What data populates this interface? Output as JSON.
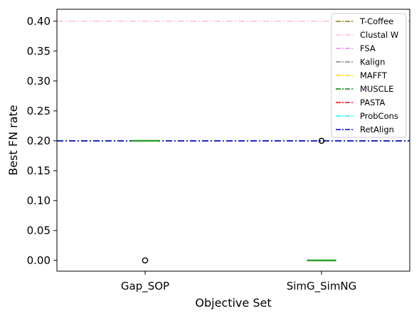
{
  "chart_data": {
    "type": "box",
    "xlabel": "Objective Set",
    "ylabel": "Best FN rate",
    "ylim": [
      -0.018,
      0.42
    ],
    "yticks": [
      0.0,
      0.05,
      0.1,
      0.15,
      0.2,
      0.25,
      0.3,
      0.35,
      0.4
    ],
    "ytick_labels": [
      "0.00",
      "0.05",
      "0.10",
      "0.15",
      "0.20",
      "0.25",
      "0.30",
      "0.35",
      "0.40"
    ],
    "categories": [
      "Gap_SOP",
      "SimG_SimNG"
    ],
    "boxes": [
      {
        "category": "Gap_SOP",
        "median": 0.2,
        "q1": 0.2,
        "q3": 0.2,
        "whisker_low": 0.2,
        "whisker_high": 0.2,
        "outliers": [
          0.0
        ]
      },
      {
        "category": "SimG_SimNG",
        "median": 0.0,
        "q1": 0.0,
        "q3": 0.0,
        "whisker_low": 0.0,
        "whisker_high": 0.0,
        "outliers": [
          0.2
        ]
      }
    ],
    "reference_lines": [
      {
        "name": "T-Coffee",
        "value": 0.2,
        "color": "#808000",
        "style": "dashdot"
      },
      {
        "name": "Clustal W",
        "value": 0.4,
        "color": "#ffc0cb",
        "style": "dashdot"
      },
      {
        "name": "FSA",
        "value": 0.2,
        "color": "#ee82ee",
        "style": "dashdot"
      },
      {
        "name": "Kalign",
        "value": 0.2,
        "color": "#808080",
        "style": "dashdot"
      },
      {
        "name": "MAFFT",
        "value": 0.2,
        "color": "#ffd700",
        "style": "dashdot"
      },
      {
        "name": "MUSCLE",
        "value": 0.2,
        "color": "#008000",
        "style": "dashdot"
      },
      {
        "name": "PASTA",
        "value": 0.2,
        "color": "#ff0000",
        "style": "dashdot"
      },
      {
        "name": "ProbCons",
        "value": 0.2,
        "color": "#00ffff",
        "style": "dashdot"
      },
      {
        "name": "RetAlign",
        "value": 0.2,
        "color": "#0000cd",
        "style": "dashdot"
      }
    ],
    "legend_placement": "top-right",
    "grid": false,
    "median_color": "#2ca02c"
  }
}
